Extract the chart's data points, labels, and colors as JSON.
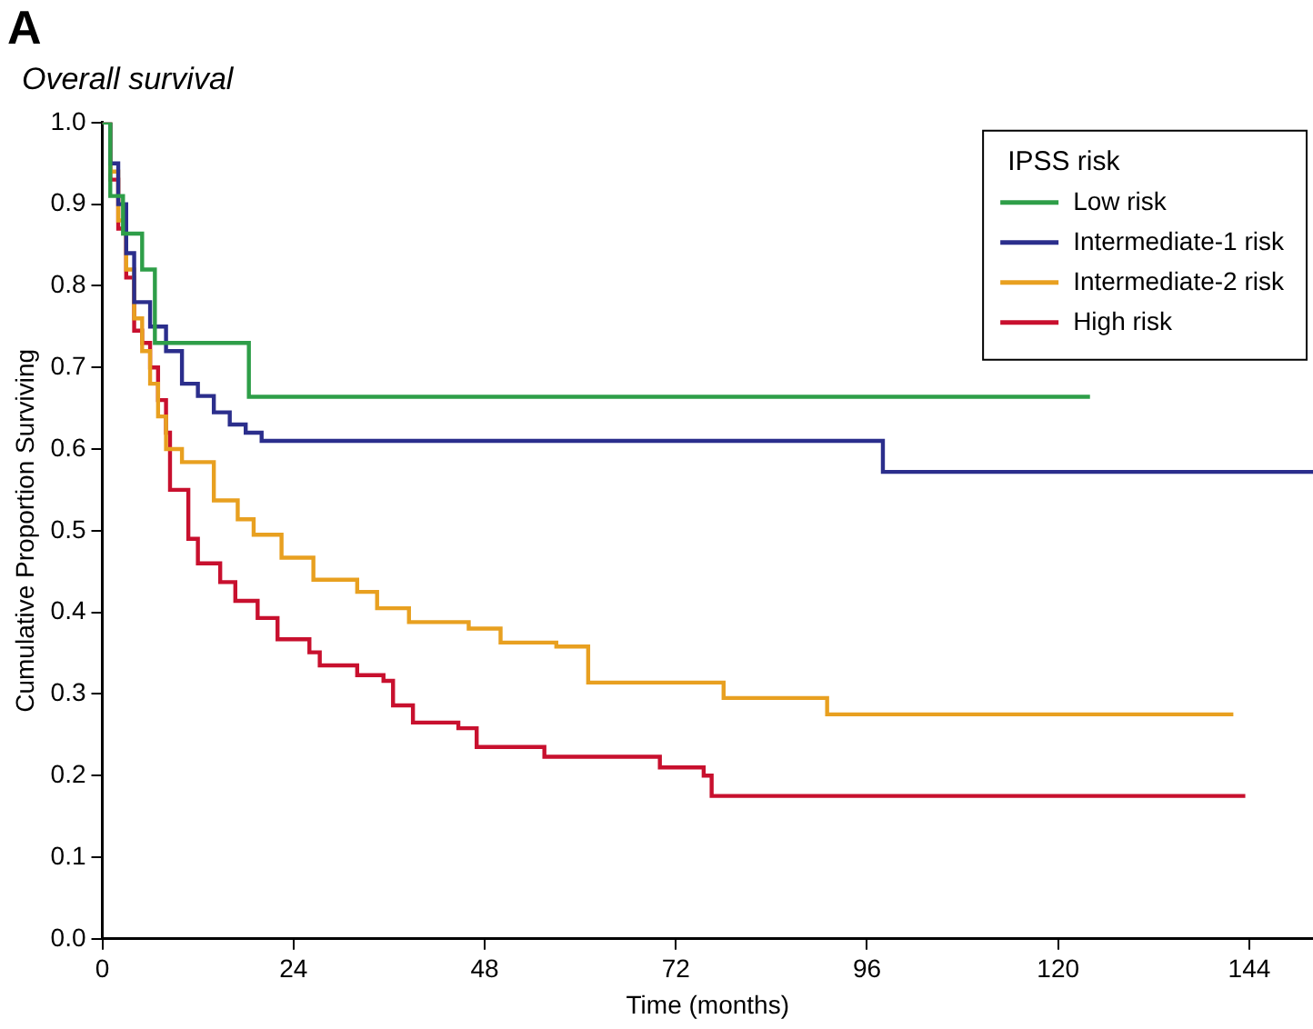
{
  "chart_data": {
    "type": "step",
    "title": "Overall survival",
    "annotations": [
      "A"
    ],
    "xlabel": "Time (months)",
    "ylabel": "Cumulative Proportion Surviving",
    "legend_title": "IPSS risk",
    "legend": "top right",
    "grid": false,
    "marker": "none",
    "line_style": "solid",
    "xlim": [
      0,
      152
    ],
    "xticks": [
      0,
      24,
      48,
      72,
      96,
      120,
      144
    ],
    "ylim": [
      0,
      1
    ],
    "yticks": [
      {
        "value": 0,
        "label": "0.0"
      },
      0.1,
      0.2,
      0.3,
      0.4,
      0.5,
      0.6,
      0.7,
      0.8,
      0.9,
      {
        "value": 1,
        "label": "1.0"
      }
    ],
    "series": [
      {
        "name": "Low risk",
        "color": "#2e9e48",
        "x": [
          0,
          1,
          2.6,
          5,
          6.6,
          18.4,
          124
        ],
        "values": [
          1,
          0.91,
          0.864,
          0.82,
          0.73,
          0.664,
          0.664
        ]
      },
      {
        "name": "Intermediate-1 risk",
        "color": "#2b2e8c",
        "x": [
          0,
          1,
          2,
          3,
          4,
          6,
          8,
          10,
          12,
          14,
          16,
          18,
          20,
          98,
          152
        ],
        "values": [
          1,
          0.95,
          0.9,
          0.84,
          0.78,
          0.75,
          0.72,
          0.68,
          0.665,
          0.645,
          0.63,
          0.62,
          0.61,
          0.572,
          0.572
        ]
      },
      {
        "name": "Intermediate-2 risk",
        "color": "#e8a020",
        "x": [
          0,
          1,
          2,
          3,
          4,
          5,
          6,
          7,
          8,
          10,
          14,
          17,
          19,
          22.5,
          26.5,
          32,
          34.5,
          38.5,
          46,
          50,
          57,
          61,
          78,
          91,
          142
        ],
        "values": [
          1,
          0.94,
          0.88,
          0.82,
          0.76,
          0.72,
          0.68,
          0.64,
          0.6,
          0.584,
          0.537,
          0.514,
          0.495,
          0.467,
          0.44,
          0.425,
          0.405,
          0.388,
          0.38,
          0.363,
          0.358,
          0.314,
          0.295,
          0.275,
          0.275
        ]
      },
      {
        "name": "High risk",
        "color": "#c8102e",
        "x": [
          0,
          1,
          2,
          3,
          4,
          5,
          6,
          7,
          8,
          8.5,
          10.8,
          12,
          14.8,
          16.7,
          19.5,
          22,
          26,
          27.3,
          32,
          35.3,
          36.5,
          39,
          44.7,
          47,
          55.5,
          70,
          75.5,
          76.5,
          143.5
        ],
        "values": [
          1,
          0.93,
          0.87,
          0.81,
          0.745,
          0.73,
          0.7,
          0.66,
          0.62,
          0.55,
          0.49,
          0.46,
          0.437,
          0.414,
          0.393,
          0.367,
          0.351,
          0.335,
          0.323,
          0.316,
          0.286,
          0.265,
          0.258,
          0.235,
          0.223,
          0.21,
          0.2,
          0.175,
          0.175
        ]
      }
    ]
  }
}
